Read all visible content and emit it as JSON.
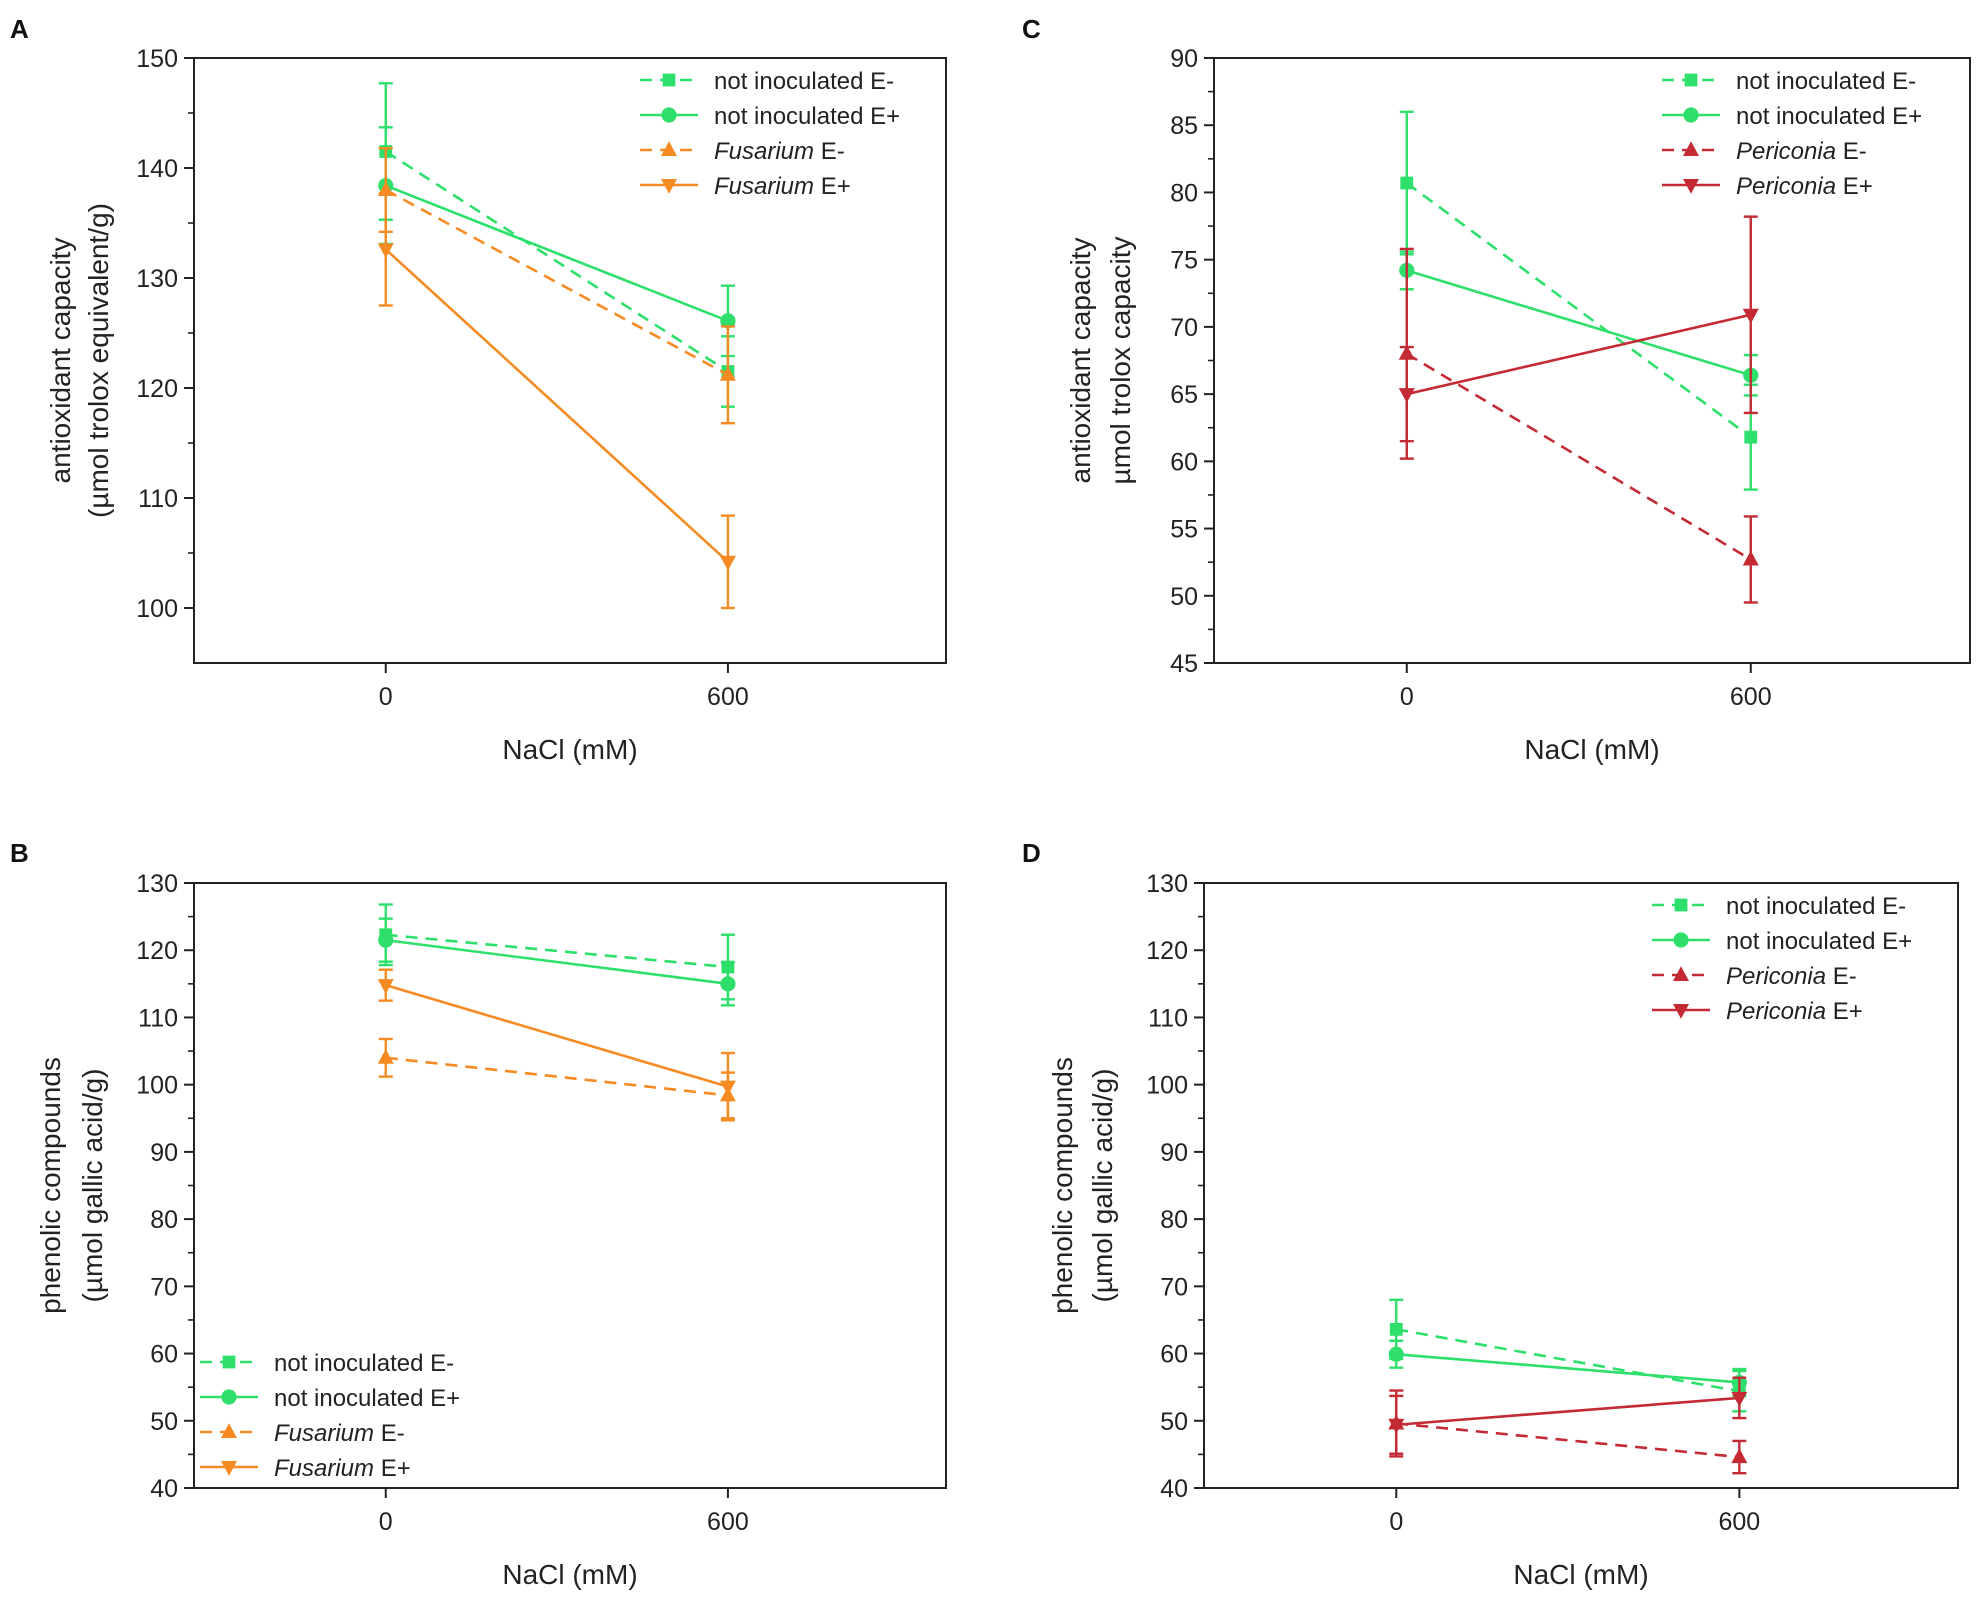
{
  "figure": {
    "colors": {
      "not_inoculated": "#2ee06b",
      "fusarium": "#f58b22",
      "periconia": "#c32a34",
      "axis": "#222222"
    }
  },
  "chart_data": [
    {
      "panel": "A",
      "type": "line",
      "xlabel": "NaCl (mM)",
      "ylabel_lines": [
        "antioxidant capacity",
        "(µmol trolox equivalent/g)"
      ],
      "x": [
        0,
        600
      ],
      "x_tick_labels": [
        "0",
        "600"
      ],
      "ylim": [
        95,
        150
      ],
      "y_ticks": [
        100,
        110,
        120,
        130,
        140,
        150
      ],
      "legend_position": "top-right",
      "series": [
        {
          "name": "not inoculated E-",
          "label_italic": "",
          "label_rest": "not inoculated E-",
          "group": "not_inoculated",
          "marker": "square",
          "dash": true,
          "values": [
            141.5,
            121.5
          ],
          "errors": [
            6.2,
            3.2
          ]
        },
        {
          "name": "not inoculated E+",
          "label_italic": "",
          "label_rest": "not inoculated E+",
          "group": "not_inoculated",
          "marker": "circle",
          "dash": false,
          "values": [
            138.4,
            126.1
          ],
          "errors": [
            5.3,
            3.2
          ]
        },
        {
          "name": "Fusarium E-",
          "label_italic": "Fusarium",
          "label_rest": " E-",
          "group": "fusarium",
          "marker": "triangle-up",
          "dash": true,
          "values": [
            138.0,
            121.2
          ],
          "errors": [
            3.8,
            4.4
          ]
        },
        {
          "name": "Fusarium E+",
          "label_italic": "Fusarium",
          "label_rest": " E+",
          "group": "fusarium",
          "marker": "triangle-down",
          "dash": false,
          "values": [
            132.6,
            104.2
          ],
          "errors": [
            5.1,
            4.2
          ]
        }
      ]
    },
    {
      "panel": "C",
      "type": "line",
      "xlabel": "NaCl (mM)",
      "ylabel_lines": [
        "antioxidant capacity",
        "µmol trolox capacity"
      ],
      "x": [
        0,
        600
      ],
      "x_tick_labels": [
        "0",
        "600"
      ],
      "ylim": [
        45,
        90
      ],
      "y_ticks": [
        45,
        50,
        55,
        60,
        65,
        70,
        75,
        80,
        85,
        90
      ],
      "legend_position": "top-right",
      "series": [
        {
          "name": "not inoculated E-",
          "label_italic": "",
          "label_rest": "not inoculated E-",
          "group": "not_inoculated",
          "marker": "square",
          "dash": true,
          "values": [
            80.7,
            61.8
          ],
          "errors": [
            5.3,
            3.9
          ]
        },
        {
          "name": "not inoculated E+",
          "label_italic": "",
          "label_rest": "not inoculated E+",
          "group": "not_inoculated",
          "marker": "circle",
          "dash": false,
          "values": [
            74.2,
            66.4
          ],
          "errors": [
            1.4,
            1.5
          ]
        },
        {
          "name": "Periconia E-",
          "label_italic": "Periconia",
          "label_rest": " E-",
          "group": "periconia",
          "marker": "triangle-up",
          "dash": true,
          "values": [
            68.0,
            52.7
          ],
          "errors": [
            7.8,
            3.2
          ]
        },
        {
          "name": "Periconia E+",
          "label_italic": "Periconia",
          "label_rest": " E+",
          "group": "periconia",
          "marker": "triangle-down",
          "dash": false,
          "values": [
            65.0,
            70.9
          ],
          "errors": [
            3.5,
            7.3
          ]
        }
      ]
    },
    {
      "panel": "B",
      "type": "line",
      "xlabel": "NaCl (mM)",
      "ylabel_lines": [
        "phenolic compounds",
        "(µmol gallic acid/g)"
      ],
      "x": [
        0,
        600
      ],
      "x_tick_labels": [
        "0",
        "600"
      ],
      "ylim": [
        40,
        130
      ],
      "y_ticks": [
        40,
        50,
        60,
        70,
        80,
        90,
        100,
        110,
        120,
        130
      ],
      "legend_position": "bottom-left",
      "series": [
        {
          "name": "not inoculated E-",
          "label_italic": "",
          "label_rest": "not inoculated E-",
          "group": "not_inoculated",
          "marker": "square",
          "dash": true,
          "values": [
            122.3,
            117.5
          ],
          "errors": [
            4.5,
            4.8
          ]
        },
        {
          "name": "not inoculated E+",
          "label_italic": "",
          "label_rest": "not inoculated E+",
          "group": "not_inoculated",
          "marker": "circle",
          "dash": false,
          "values": [
            121.5,
            115.0
          ],
          "errors": [
            3.2,
            3.2
          ]
        },
        {
          "name": "Fusarium E-",
          "label_italic": "Fusarium",
          "label_rest": " E-",
          "group": "fusarium",
          "marker": "triangle-up",
          "dash": true,
          "values": [
            104.0,
            98.4
          ],
          "errors": [
            2.8,
            3.4
          ]
        },
        {
          "name": "Fusarium E+",
          "label_italic": "Fusarium",
          "label_rest": " E+",
          "group": "fusarium",
          "marker": "triangle-down",
          "dash": false,
          "values": [
            114.8,
            99.7
          ],
          "errors": [
            2.3,
            5.0
          ]
        }
      ]
    },
    {
      "panel": "D",
      "type": "line",
      "xlabel": "NaCl (mM)",
      "ylabel_lines": [
        "phenolic compounds",
        "(µmol gallic acid/g)"
      ],
      "x": [
        0,
        600
      ],
      "x_tick_labels": [
        "0",
        "600"
      ],
      "ylim": [
        40,
        130
      ],
      "y_ticks": [
        40,
        50,
        60,
        70,
        80,
        90,
        100,
        110,
        120,
        130
      ],
      "legend_position": "top-right",
      "series": [
        {
          "name": "not inoculated E-",
          "label_italic": "",
          "label_rest": "not inoculated E-",
          "group": "not_inoculated",
          "marker": "square",
          "dash": true,
          "values": [
            63.6,
            54.4
          ],
          "errors": [
            4.4,
            3.0
          ]
        },
        {
          "name": "not inoculated E+",
          "label_italic": "",
          "label_rest": "not inoculated E+",
          "group": "not_inoculated",
          "marker": "circle",
          "dash": false,
          "values": [
            59.9,
            55.7
          ],
          "errors": [
            2.0,
            2.0
          ]
        },
        {
          "name": "Periconia E-",
          "label_italic": "Periconia",
          "label_rest": " E-",
          "group": "periconia",
          "marker": "triangle-up",
          "dash": true,
          "values": [
            49.6,
            44.6
          ],
          "errors": [
            4.9,
            2.4
          ]
        },
        {
          "name": "Periconia E+",
          "label_italic": "Periconia",
          "label_rest": " E+",
          "group": "periconia",
          "marker": "triangle-down",
          "dash": false,
          "values": [
            49.4,
            53.4
          ],
          "errors": [
            4.3,
            3.0
          ]
        }
      ]
    }
  ]
}
